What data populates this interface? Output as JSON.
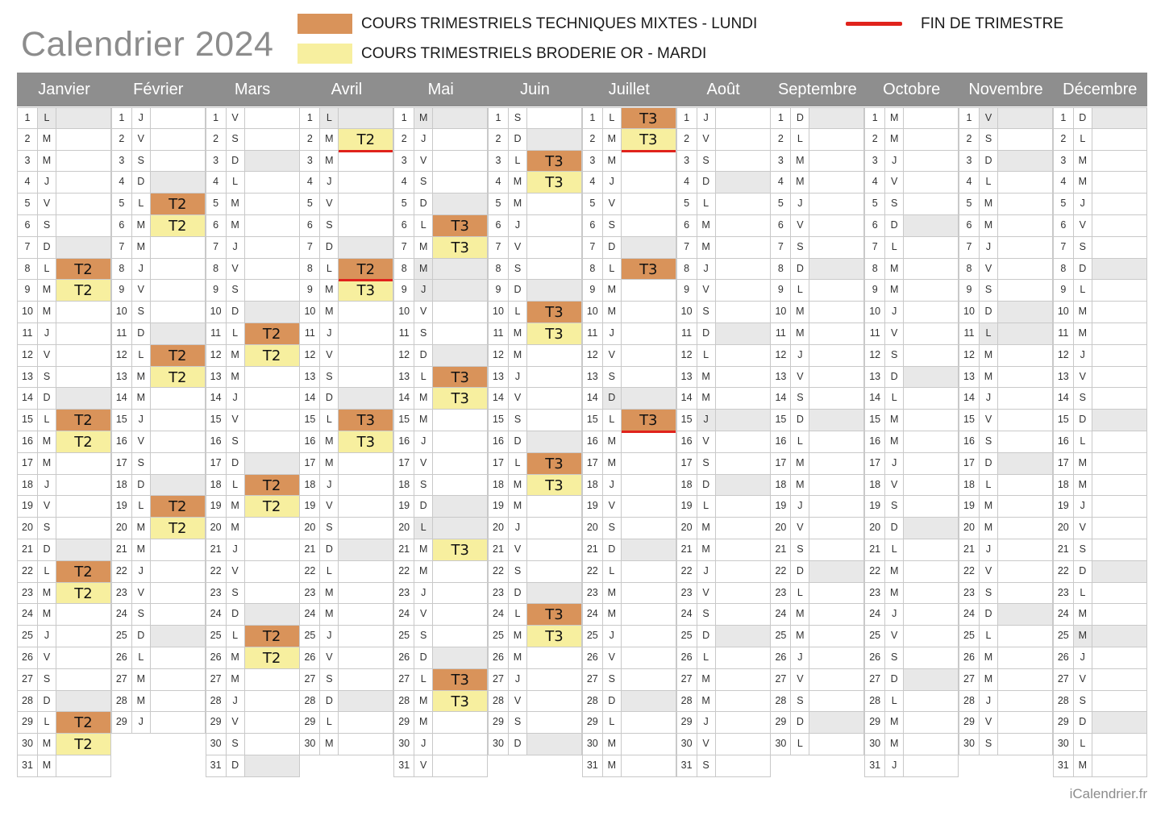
{
  "title": "Calendrier 2024",
  "legend": {
    "lundi_label": "COURS TRIMESTRIELS TECHNIQUES MIXTES - LUNDI",
    "mardi_label": "COURS TRIMESTRIELS BRODERIE OR - MARDI",
    "fin_label": "FIN DE TRIMESTRE",
    "lundi_color": "#d9935a",
    "mardi_color": "#f7ef9f",
    "fin_color": "#e0231c"
  },
  "footer": "iCalendrier.fr",
  "months": [
    {
      "name": "Janvier",
      "days": 31,
      "start": 1,
      "holidays": [
        1
      ],
      "courses": {
        "8": "T2",
        "9": "T2",
        "15": "T2",
        "16": "T2",
        "22": "T2",
        "23": "T2",
        "29": "T2",
        "30": "T2"
      },
      "ends": []
    },
    {
      "name": "Février",
      "days": 29,
      "start": 4,
      "holidays": [],
      "courses": {
        "5": "T2",
        "6": "T2",
        "12": "T2",
        "13": "T2",
        "19": "T2",
        "20": "T2"
      },
      "ends": []
    },
    {
      "name": "Mars",
      "days": 31,
      "start": 5,
      "holidays": [],
      "courses": {
        "11": "T2",
        "12": "T2",
        "18": "T2",
        "19": "T2",
        "25": "T2",
        "26": "T2"
      },
      "ends": []
    },
    {
      "name": "Avril",
      "days": 30,
      "start": 1,
      "holidays": [
        1
      ],
      "courses": {
        "2": "T2",
        "8": "T2",
        "9": "T3",
        "15": "T3",
        "16": "T3"
      },
      "ends": [
        2,
        8
      ]
    },
    {
      "name": "Mai",
      "days": 31,
      "start": 3,
      "holidays": [
        1,
        8,
        9,
        20
      ],
      "courses": {
        "6": "T3",
        "7": "T3",
        "13": "T3",
        "14": "T3",
        "21": "T3",
        "27": "T3",
        "28": "T3"
      },
      "ends": []
    },
    {
      "name": "Juin",
      "days": 30,
      "start": 6,
      "holidays": [],
      "courses": {
        "3": "T3",
        "4": "T3",
        "10": "T3",
        "11": "T3",
        "17": "T3",
        "18": "T3",
        "24": "T3",
        "25": "T3"
      },
      "ends": []
    },
    {
      "name": "Juillet",
      "days": 31,
      "start": 1,
      "holidays": [
        14
      ],
      "courses": {
        "1": "T3",
        "2": "T3",
        "8": "T3",
        "15": "T3"
      },
      "ends": [
        2,
        15
      ]
    },
    {
      "name": "Août",
      "days": 31,
      "start": 4,
      "holidays": [
        15
      ],
      "courses": {},
      "ends": []
    },
    {
      "name": "Septembre",
      "days": 30,
      "start": 7,
      "holidays": [],
      "courses": {},
      "ends": []
    },
    {
      "name": "Octobre",
      "days": 31,
      "start": 2,
      "holidays": [],
      "courses": {},
      "ends": []
    },
    {
      "name": "Novembre",
      "days": 30,
      "start": 5,
      "holidays": [
        1,
        11
      ],
      "courses": {},
      "ends": []
    },
    {
      "name": "Décembre",
      "days": 31,
      "start": 7,
      "holidays": [
        25
      ],
      "courses": {},
      "ends": []
    }
  ],
  "weekday_letters": [
    "L",
    "M",
    "M",
    "J",
    "V",
    "S",
    "D"
  ]
}
